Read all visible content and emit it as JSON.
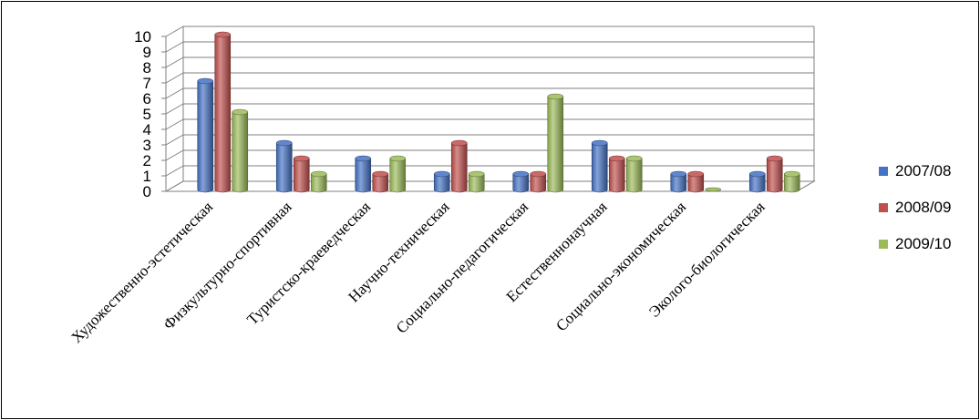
{
  "chart_data": {
    "type": "bar",
    "categories": [
      "Художественно-эстетическая",
      "Физкультурно-спортивная",
      "Туристско-краеведческая",
      "Научно-техническая",
      "Социально-педагогическая",
      "Естественнонаучная",
      "Социально-экономическая",
      "Эколого-биологическая"
    ],
    "series": [
      {
        "name": "2007/08",
        "color": "#4472C4",
        "values": [
          7,
          3,
          2,
          1,
          1,
          3,
          1,
          1
        ]
      },
      {
        "name": "2008/09",
        "color": "#C0504D",
        "values": [
          10,
          2,
          1,
          3,
          1,
          2,
          1,
          2
        ]
      },
      {
        "name": "2009/10",
        "color": "#9BBB59",
        "values": [
          5,
          1,
          2,
          1,
          6,
          2,
          0,
          1
        ]
      }
    ],
    "yticks": [
      "0",
      "1",
      "2",
      "3",
      "4",
      "5",
      "6",
      "7",
      "8",
      "9",
      "10"
    ],
    "ylim": [
      0,
      10
    ],
    "grid": true,
    "legend_position": "right",
    "style": "3d-cylinder"
  }
}
